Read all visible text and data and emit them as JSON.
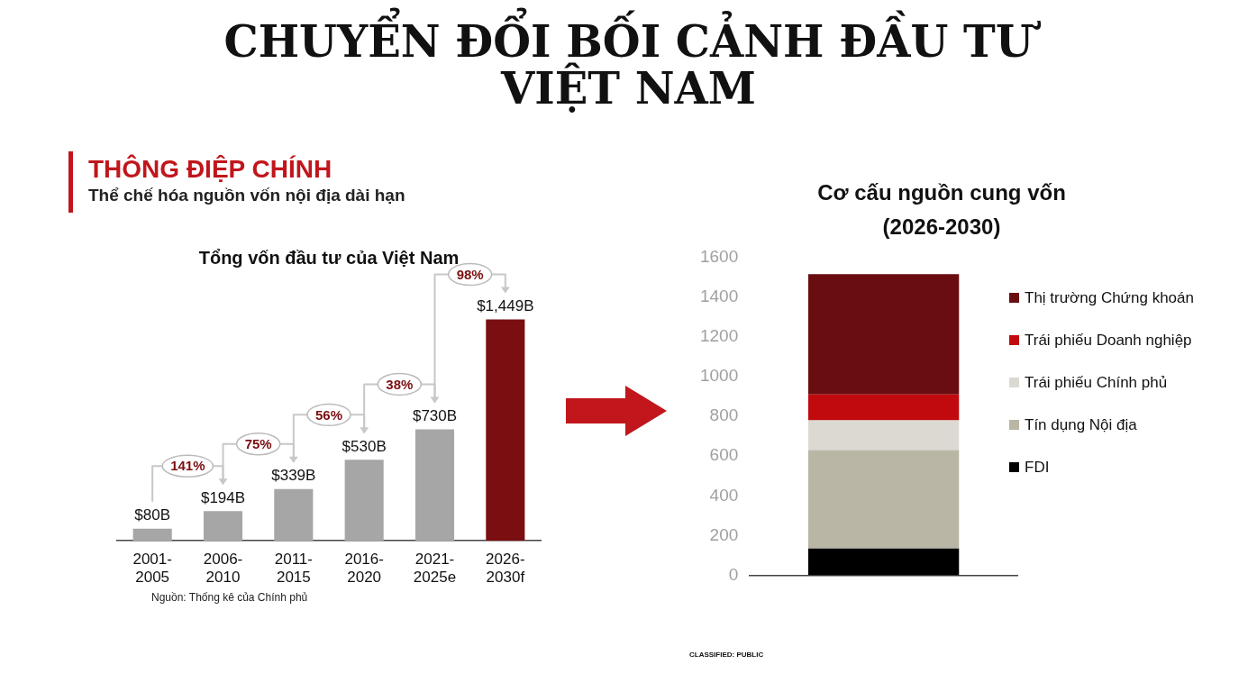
{
  "chart_data": [
    {
      "type": "bar",
      "title": "Tổng vốn đầu tư của Việt Nam",
      "categories": [
        "2001-2005",
        "2006-2010",
        "2011-2015",
        "2016-2020",
        "2021-2025e",
        "2026-2030f"
      ],
      "values": [
        80,
        194,
        339,
        530,
        730,
        1449
      ],
      "colors": [
        "#a6a6a6",
        "#a6a6a6",
        "#a6a6a6",
        "#a6a6a6",
        "#a6a6a6",
        "#7a0e10"
      ],
      "value_labels": [
        "$80B",
        "$194B",
        "$339B",
        "$530B",
        "$730B",
        "$1,449B"
      ],
      "tick_labels": "x",
      "grid": false,
      "legend": false,
      "annotations": [
        "CHUYỂN ĐỔI BỐI CẢNH ĐẦU TƯ VIỆT NAM",
        "THÔNG ĐIỆP CHÍNH",
        "Thể chế hóa nguồn vốn nội địa dài hạn",
        "Nguồn: Thống kê của Chính phủ",
        "141%",
        "75%",
        "56%",
        "38%",
        "98%"
      ]
    },
    {
      "type": "bar",
      "title": "Cơ cấu nguồn cung vốn (2026-2030)",
      "stacked": true,
      "categories": [
        null
      ],
      "series": [
        {
          "name": "FDI",
          "color": "#000000",
          "values": [
            135
          ]
        },
        {
          "name": "Tín dụng Nội địa",
          "color": "#b9b6a5",
          "values": [
            495
          ]
        },
        {
          "name": "Trái phiếu Chính phủ",
          "color": "#dcd9d3",
          "values": [
            150
          ]
        },
        {
          "name": "Trái phiếu Doanh nghiệp",
          "color": "#c00a0e",
          "values": [
            130
          ]
        },
        {
          "name": "Thị trường Chứng khoán",
          "color": "#6a0d10",
          "values": [
            605
          ]
        }
      ],
      "ylim": [
        0,
        1600
      ],
      "yticks": [
        0,
        200,
        400,
        600,
        800,
        1000,
        1200,
        1400,
        1600
      ],
      "tick_labels": "y",
      "grid": false,
      "legend": "right",
      "annotations": [
        "CLASSIFIED: PUBLIC"
      ]
    }
  ]
}
